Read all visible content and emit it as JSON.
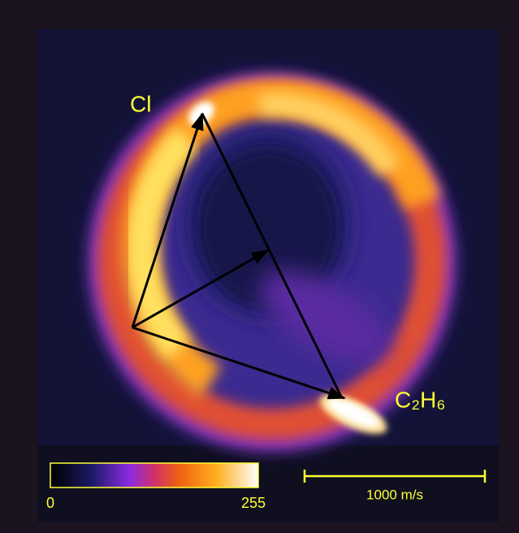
{
  "labels": {
    "fragment_1": "Cl",
    "fragment_2": "C₂H₆"
  },
  "colorbar": {
    "min": 0,
    "max": 255
  },
  "scale_bar": {
    "label": "1000 m/s"
  }
}
